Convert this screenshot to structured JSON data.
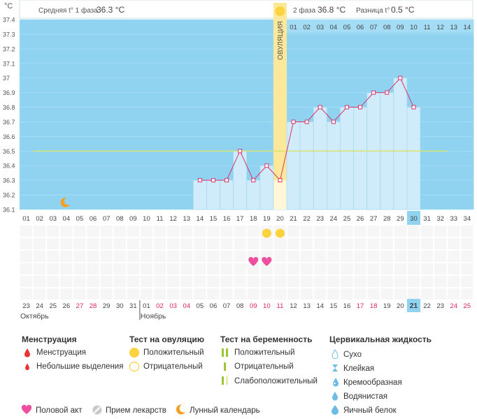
{
  "chart_data": {
    "type": "line",
    "y_unit": "°C",
    "ylim": [
      36.1,
      37.4
    ],
    "y_ticks": [
      "36.1",
      "36.2",
      "36.3",
      "36.4",
      "36.5",
      "36.6",
      "36.7",
      "36.8",
      "36.9",
      "37",
      "37.1",
      "37.2",
      "37.3",
      "37.4"
    ],
    "cycle_days": [
      "01",
      "02",
      "03",
      "04",
      "05",
      "06",
      "07",
      "08",
      "09",
      "10",
      "11",
      "12",
      "13",
      "14",
      "15",
      "16",
      "17",
      "18",
      "19",
      "20",
      "21",
      "22",
      "23",
      "24",
      "25",
      "26",
      "27",
      "28",
      "29",
      "30",
      "31",
      "32",
      "33",
      "34"
    ],
    "phase2_days": [
      "01",
      "02",
      "03",
      "04",
      "05",
      "06",
      "07",
      "08",
      "09",
      "10",
      "11",
      "12",
      "13",
      "14"
    ],
    "series": [
      {
        "x": [
          14,
          15,
          16,
          17,
          18,
          19,
          20,
          21,
          22,
          23,
          24,
          25,
          26,
          27,
          28,
          29,
          30
        ],
        "values": [
          36.3,
          36.3,
          36.3,
          36.5,
          36.3,
          36.4,
          36.3,
          36.7,
          36.7,
          36.8,
          36.7,
          36.8,
          36.8,
          36.9,
          36.9,
          37.0,
          36.8
        ]
      }
    ],
    "coverline": 36.5,
    "current_day": 30,
    "ovulation_day": 20,
    "ovulation_label": "ОВУЛЯЦИЯ",
    "moon_day": 4,
    "ovulation_test_positive_days": [
      19,
      20
    ],
    "intercourse_days": [
      18,
      19
    ],
    "calendar_dates": [
      "23",
      "24",
      "25",
      "26",
      "27",
      "28",
      "29",
      "30",
      "31",
      "01",
      "02",
      "03",
      "04",
      "05",
      "06",
      "07",
      "08",
      "09",
      "10",
      "11",
      "12",
      "13",
      "14",
      "15",
      "16",
      "17",
      "18",
      "19",
      "20",
      "21",
      "22",
      "23",
      "24",
      "25"
    ],
    "calendar_red_dates": [
      4,
      5,
      10,
      11,
      12,
      17,
      18,
      19,
      25,
      26,
      32,
      33
    ],
    "calendar_today_index": 29,
    "months": [
      {
        "label": "Октябрь",
        "start_index": 0
      },
      {
        "label": "Ноябрь",
        "start_index": 9
      }
    ]
  },
  "header": {
    "phase1_label": "Средняя t° 1 фаза",
    "phase1_value": "36.3 °C",
    "phase2_label": "2 фаза",
    "phase2_value": "36.8 °C",
    "diff_label": "Разница t°",
    "diff_value": "0.5 °C"
  },
  "legend": {
    "menstruation": {
      "title": "Менструация",
      "items": [
        "Менструация",
        "Небольшие выделения"
      ]
    },
    "ovulation_test": {
      "title": "Тест на овуляцию",
      "items": [
        "Положительный",
        "Отрицательный"
      ]
    },
    "pregnancy_test": {
      "title": "Тест на беременность",
      "items": [
        "Положительный",
        "Отрицательный",
        "Слабоположительный"
      ]
    },
    "cervical": {
      "title": "Цервикальная жидкость",
      "items": [
        "Сухо",
        "Клейкая",
        "Кремообразная",
        "Водянистая",
        "Яичный белок"
      ]
    },
    "bottom": [
      "Половой акт",
      "Прием лекарств",
      "Лунный календарь"
    ]
  },
  "colors": {
    "plot_bg": "#8fd3f0",
    "bar_fill": "#d0ecfa",
    "line": "#d9336a",
    "ovulation_band": "#fbe89a",
    "coverline": "#d8e36a",
    "today": "#8fd3f0",
    "red_text": "#e0245e",
    "sun": "#fcd23e",
    "heart": "#ef4f9f",
    "moon": "#f4a024",
    "drop_red": "#e83434",
    "drop_blue": "#6bbde8"
  }
}
